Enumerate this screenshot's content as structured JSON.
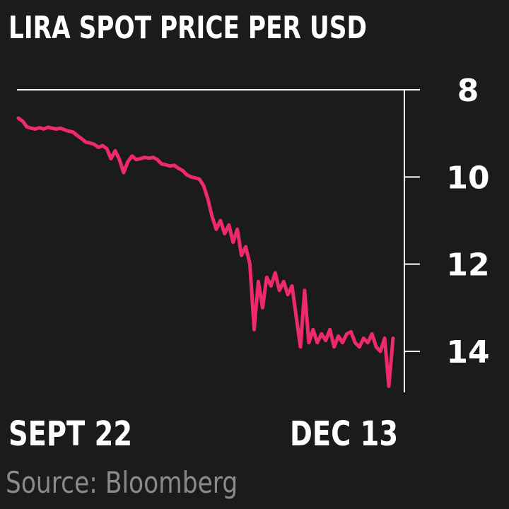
{
  "chart_data": {
    "type": "line",
    "title": "LIRA SPOT PRICE PER USD",
    "source": "Source: Bloomberg",
    "x_start_label": "SEPT 22",
    "x_end_label": "DEC 13",
    "y_ticks": [
      8,
      10,
      12,
      14
    ],
    "ylim": [
      8,
      15
    ],
    "y_axis_position": "right",
    "y_inverted": true,
    "grid": false,
    "series": [
      {
        "color": "#ee2a6b",
        "values": [
          8.65,
          8.72,
          8.85,
          8.88,
          8.9,
          8.87,
          8.9,
          8.86,
          8.88,
          8.9,
          8.88,
          8.92,
          8.95,
          8.97,
          9.05,
          9.12,
          9.2,
          9.22,
          9.25,
          9.32,
          9.28,
          9.35,
          9.58,
          9.4,
          9.6,
          9.9,
          9.65,
          9.52,
          9.6,
          9.58,
          9.55,
          9.57,
          9.55,
          9.6,
          9.7,
          9.72,
          9.75,
          9.73,
          9.8,
          9.85,
          9.95,
          10.0,
          10.02,
          10.05,
          10.2,
          10.5,
          10.9,
          11.2,
          11.0,
          11.3,
          11.1,
          11.5,
          11.2,
          11.8,
          11.6,
          12.0,
          13.5,
          12.4,
          13.0,
          12.3,
          12.5,
          12.2,
          12.6,
          12.4,
          12.7,
          12.5,
          13.2,
          13.9,
          12.6,
          13.8,
          13.5,
          13.8,
          13.6,
          13.75,
          13.5,
          13.9,
          13.65,
          13.8,
          13.6,
          13.55,
          13.8,
          13.9,
          13.7,
          13.8,
          13.6,
          13.9,
          14.0,
          13.7,
          14.8,
          13.7
        ]
      }
    ]
  }
}
